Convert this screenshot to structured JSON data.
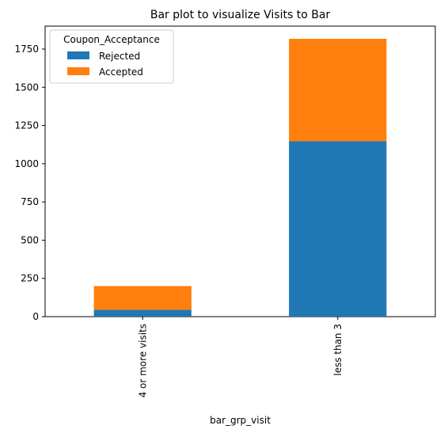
{
  "chart_data": {
    "type": "bar",
    "stacked": true,
    "title": "Bar plot to visualize Visits to Bar",
    "xlabel": "bar_grp_visit",
    "ylabel": "",
    "categories": [
      "4 or more visits",
      "less than 3"
    ],
    "series": [
      {
        "name": "Rejected",
        "values": [
          45,
          1147
        ],
        "color": "#1f77b4"
      },
      {
        "name": "Accepted",
        "values": [
          155,
          670
        ],
        "color": "#ff7f0e"
      }
    ],
    "ylim": [
      0,
      1900
    ],
    "yticks": [
      0,
      250,
      500,
      750,
      1000,
      1250,
      1500,
      1750
    ],
    "legend": {
      "title": "Coupon_Acceptance",
      "placement": "top-left"
    },
    "grid": false
  }
}
